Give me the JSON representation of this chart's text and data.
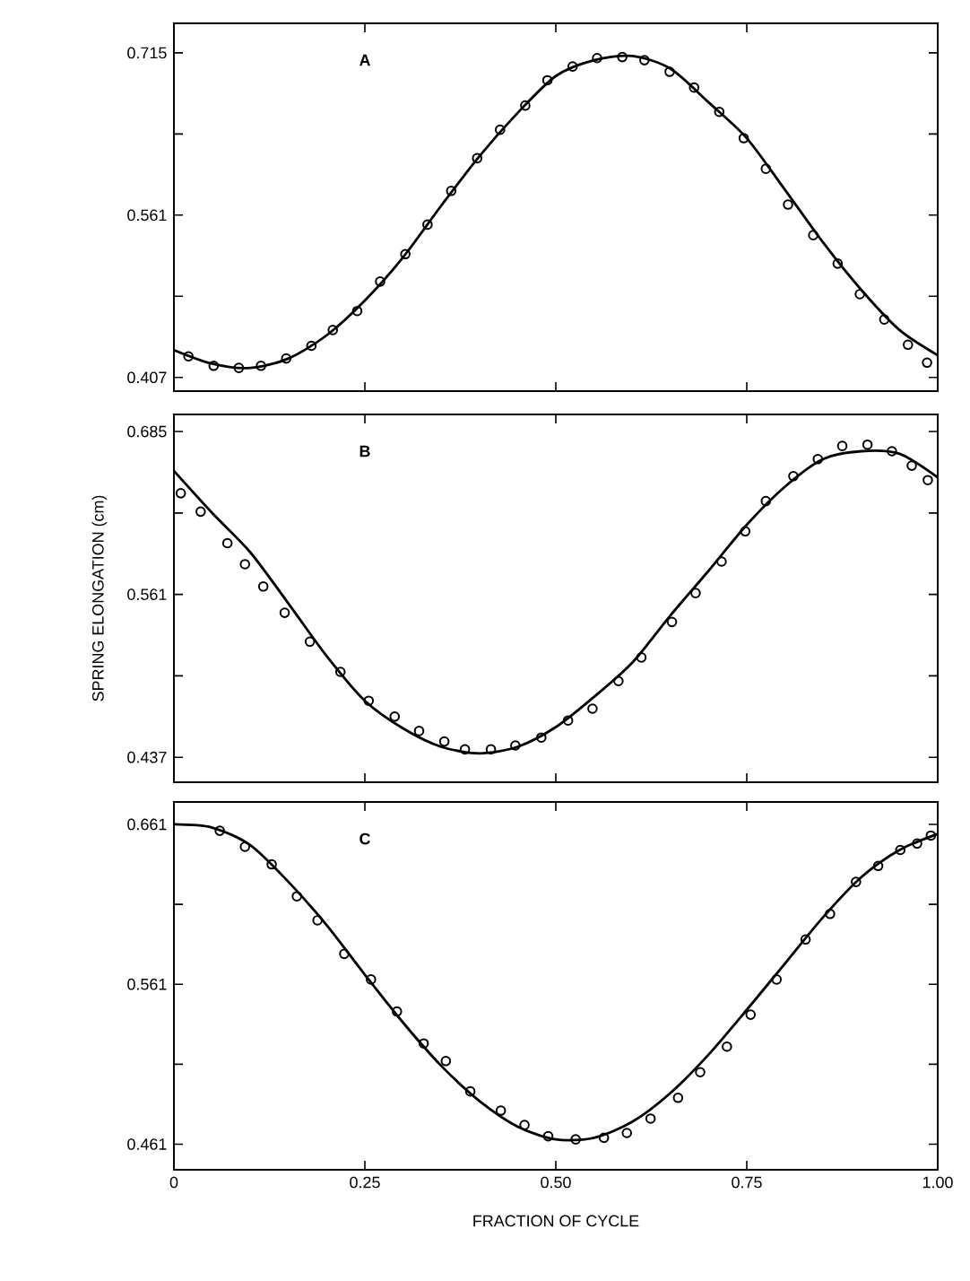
{
  "chart_data": [
    {
      "type": "scatter",
      "annotations": [
        "A"
      ],
      "xlim": [
        0,
        1
      ],
      "ylim": [
        0.394,
        0.743
      ],
      "tick_labels": "y",
      "marker": "circle",
      "xticks": [
        0,
        0.25,
        0.5,
        0.75,
        1
      ],
      "yticks": [
        0.407,
        {
          "value": 0.484,
          "label": null
        },
        0.561,
        {
          "value": 0.638,
          "label": null
        },
        0.715
      ],
      "series": [
        {
          "color": "#000000",
          "x": [
            0.019,
            0.052,
            0.085,
            0.114,
            0.147,
            0.18,
            0.208,
            0.24,
            0.27,
            0.303,
            0.332,
            0.363,
            0.397,
            0.427,
            0.46,
            0.489,
            0.522,
            0.554,
            0.587,
            0.616,
            0.649,
            0.681,
            0.714,
            0.746,
            0.775,
            0.804,
            0.837,
            0.869,
            0.898,
            0.93,
            0.961,
            0.986
          ],
          "values": [
            0.427,
            0.418,
            0.416,
            0.418,
            0.425,
            0.437,
            0.452,
            0.47,
            0.498,
            0.524,
            0.552,
            0.584,
            0.615,
            0.642,
            0.665,
            0.689,
            0.702,
            0.71,
            0.711,
            0.708,
            0.697,
            0.682,
            0.659,
            0.634,
            0.605,
            0.571,
            0.542,
            0.515,
            0.486,
            0.462,
            0.438,
            0.421
          ]
        },
        {
          "type": "line",
          "marker": "none",
          "color": "#000000",
          "line_style": "solid",
          "x": [
            0,
            0.05,
            0.1,
            0.15,
            0.2,
            0.25,
            0.3,
            0.35,
            0.4,
            0.45,
            0.5,
            0.55,
            0.6,
            0.65,
            0.7,
            0.75,
            0.8,
            0.85,
            0.9,
            0.95,
            1.0
          ],
          "values": [
            0.433,
            0.42,
            0.416,
            0.425,
            0.447,
            0.48,
            0.521,
            0.57,
            0.617,
            0.658,
            0.693,
            0.708,
            0.712,
            0.7,
            0.668,
            0.634,
            0.585,
            0.535,
            0.49,
            0.452,
            0.428
          ]
        }
      ]
    },
    {
      "type": "scatter",
      "annotations": [
        "B"
      ],
      "ylabel": "SPRING ELONGATION (cm)",
      "xlim": [
        0,
        1
      ],
      "ylim": [
        0.418,
        0.698
      ],
      "tick_labels": "y",
      "marker": "circle",
      "xticks": [
        0,
        0.25,
        0.5,
        0.75,
        1
      ],
      "yticks": [
        0.437,
        {
          "value": 0.499,
          "label": null
        },
        0.561,
        {
          "value": 0.623,
          "label": null
        },
        0.685
      ],
      "series": [
        {
          "color": "#000000",
          "x": [
            0.009,
            0.035,
            0.07,
            0.093,
            0.117,
            0.145,
            0.178,
            0.218,
            0.255,
            0.289,
            0.321,
            0.354,
            0.381,
            0.415,
            0.447,
            0.481,
            0.516,
            0.548,
            0.582,
            0.612,
            0.652,
            0.683,
            0.717,
            0.748,
            0.775,
            0.811,
            0.843,
            0.875,
            0.908,
            0.94,
            0.966,
            0.987
          ],
          "values": [
            0.638,
            0.624,
            0.6,
            0.584,
            0.567,
            0.547,
            0.525,
            0.502,
            0.48,
            0.468,
            0.457,
            0.449,
            0.443,
            0.443,
            0.446,
            0.452,
            0.465,
            0.474,
            0.495,
            0.513,
            0.54,
            0.562,
            0.586,
            0.609,
            0.632,
            0.651,
            0.664,
            0.674,
            0.675,
            0.67,
            0.659,
            0.648
          ]
        },
        {
          "type": "line",
          "marker": "none",
          "color": "#000000",
          "line_style": "solid",
          "x": [
            0,
            0.05,
            0.1,
            0.15,
            0.2,
            0.25,
            0.3,
            0.35,
            0.4,
            0.45,
            0.5,
            0.55,
            0.6,
            0.65,
            0.7,
            0.75,
            0.8,
            0.85,
            0.9,
            0.95,
            1.0
          ],
          "values": [
            0.655,
            0.623,
            0.593,
            0.554,
            0.514,
            0.48,
            0.459,
            0.445,
            0.44,
            0.445,
            0.46,
            0.483,
            0.509,
            0.545,
            0.579,
            0.614,
            0.643,
            0.664,
            0.67,
            0.668,
            0.65
          ]
        }
      ]
    },
    {
      "type": "scatter",
      "annotations": [
        "C"
      ],
      "xlabel": "FRACTION OF CYCLE",
      "xlim": [
        0,
        1
      ],
      "ylim": [
        0.445,
        0.675
      ],
      "marker": "circle",
      "xticks": [
        {
          "value": 0,
          "label": "0"
        },
        {
          "value": 0.25,
          "label": "0.25"
        },
        {
          "value": 0.5,
          "label": "0.50"
        },
        {
          "value": 0.75,
          "label": "0.75"
        },
        {
          "value": 1,
          "label": "1.00"
        }
      ],
      "yticks": [
        0.461,
        {
          "value": 0.511,
          "label": null
        },
        0.561,
        {
          "value": 0.611,
          "label": null
        },
        0.661
      ],
      "series": [
        {
          "color": "#000000",
          "x": [
            0.06,
            0.093,
            0.128,
            0.161,
            0.188,
            0.223,
            0.258,
            0.292,
            0.327,
            0.356,
            0.388,
            0.428,
            0.459,
            0.49,
            0.526,
            0.563,
            0.593,
            0.624,
            0.66,
            0.689,
            0.724,
            0.755,
            0.789,
            0.827,
            0.859,
            0.893,
            0.922,
            0.951,
            0.973,
            0.991
          ],
          "values": [
            0.657,
            0.647,
            0.636,
            0.616,
            0.601,
            0.58,
            0.564,
            0.544,
            0.524,
            0.513,
            0.494,
            0.482,
            0.473,
            0.466,
            0.464,
            0.465,
            0.468,
            0.477,
            0.49,
            0.506,
            0.522,
            0.542,
            0.564,
            0.589,
            0.605,
            0.625,
            0.635,
            0.645,
            0.649,
            0.654
          ]
        },
        {
          "type": "line",
          "marker": "none",
          "color": "#000000",
          "line_style": "solid",
          "x": [
            0,
            0.05,
            0.1,
            0.15,
            0.2,
            0.25,
            0.3,
            0.35,
            0.4,
            0.45,
            0.5,
            0.55,
            0.6,
            0.65,
            0.7,
            0.75,
            0.8,
            0.85,
            0.9,
            0.95,
            1.0
          ],
          "values": [
            0.661,
            0.659,
            0.648,
            0.625,
            0.598,
            0.567,
            0.537,
            0.51,
            0.488,
            0.472,
            0.464,
            0.465,
            0.475,
            0.493,
            0.517,
            0.545,
            0.574,
            0.603,
            0.628,
            0.645,
            0.655
          ]
        }
      ]
    }
  ]
}
